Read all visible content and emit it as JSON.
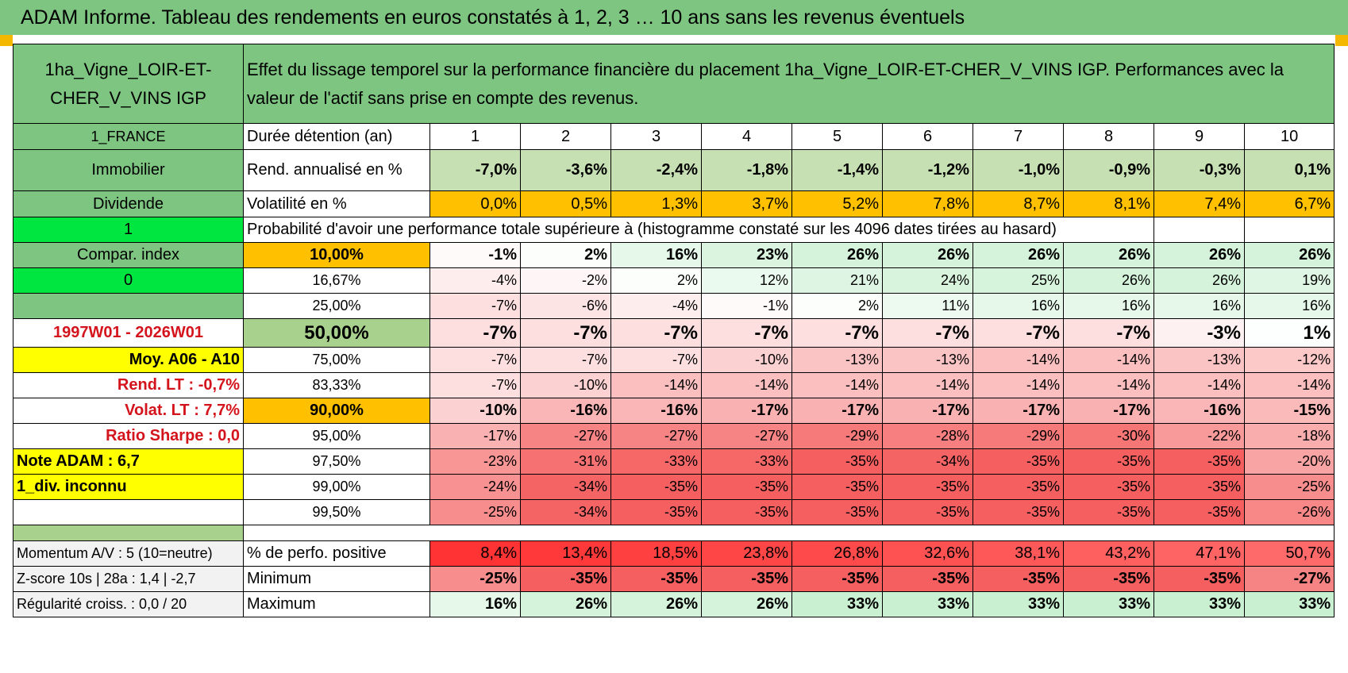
{
  "title": "ADAM Informe. Tableau des rendements en euros constatés à 1, 2, 3 … 10 ans sans les revenus éventuels",
  "header": {
    "asset_name": "1ha_Vigne_LOIR-ET-CHER_V_VINS IGP",
    "description": "Effet du lissage temporel sur la performance financière du placement 1ha_Vigne_LOIR-ET-CHER_V_VINS IGP. Performances avec la valeur de l'actif sans prise en compte des revenus."
  },
  "left_panel": {
    "country": "1_FRANCE",
    "category": "Immobilier",
    "income_type": "Dividende",
    "flag_1": "1",
    "compar_index": "Compar. index",
    "flag_0": "0",
    "empty": "",
    "period": "1997W01 - 2026W01",
    "moy": "Moy. A06 - A10",
    "rend_lt": "Rend. LT :    -0,7%",
    "volat_lt": "Volat. LT :    7,7%",
    "sharpe": "Ratio Sharpe :    0,0",
    "note": "Note ADAM : 6,7",
    "div": "1_div. inconnu"
  },
  "durations": {
    "label": "Durée détention (an)",
    "values": [
      "1",
      "2",
      "3",
      "4",
      "5",
      "6",
      "7",
      "8",
      "9",
      "10"
    ]
  },
  "rend_annualise": {
    "label": "Rend. annualisé en %",
    "values": [
      "-7,0%",
      "-3,6%",
      "-2,4%",
      "-1,8%",
      "-1,4%",
      "-1,2%",
      "-1,0%",
      "-0,9%",
      "-0,3%",
      "0,1%"
    ]
  },
  "volatilite": {
    "label": "Volatilité en %",
    "values": [
      "0,0%",
      "0,5%",
      "1,3%",
      "3,7%",
      "5,2%",
      "7,8%",
      "8,7%",
      "8,1%",
      "7,4%",
      "6,7%"
    ]
  },
  "probability_header": "Probabilité d'avoir une performance totale supérieure à (histogramme constaté sur les 4096 dates tirées au hasard)",
  "percentile_rows": [
    {
      "p": "10,00%",
      "values": [
        "-1%",
        "2%",
        "16%",
        "23%",
        "26%",
        "26%",
        "26%",
        "26%",
        "26%",
        "26%"
      ]
    },
    {
      "p": "16,67%",
      "values": [
        "-4%",
        "-2%",
        "2%",
        "12%",
        "21%",
        "24%",
        "25%",
        "26%",
        "26%",
        "19%"
      ]
    },
    {
      "p": "25,00%",
      "values": [
        "-7%",
        "-6%",
        "-4%",
        "-1%",
        "2%",
        "11%",
        "16%",
        "16%",
        "16%",
        "16%"
      ]
    },
    {
      "p": "50,00%",
      "values": [
        "-7%",
        "-7%",
        "-7%",
        "-7%",
        "-7%",
        "-7%",
        "-7%",
        "-7%",
        "-3%",
        "1%"
      ]
    },
    {
      "p": "75,00%",
      "values": [
        "-7%",
        "-7%",
        "-7%",
        "-10%",
        "-13%",
        "-13%",
        "-14%",
        "-14%",
        "-13%",
        "-12%"
      ]
    },
    {
      "p": "83,33%",
      "values": [
        "-7%",
        "-10%",
        "-14%",
        "-14%",
        "-14%",
        "-14%",
        "-14%",
        "-14%",
        "-14%",
        "-14%"
      ]
    },
    {
      "p": "90,00%",
      "values": [
        "-10%",
        "-16%",
        "-16%",
        "-17%",
        "-17%",
        "-17%",
        "-17%",
        "-17%",
        "-16%",
        "-15%"
      ]
    },
    {
      "p": "95,00%",
      "values": [
        "-17%",
        "-27%",
        "-27%",
        "-27%",
        "-29%",
        "-28%",
        "-29%",
        "-30%",
        "-22%",
        "-18%"
      ]
    },
    {
      "p": "97,50%",
      "values": [
        "-23%",
        "-31%",
        "-33%",
        "-33%",
        "-35%",
        "-34%",
        "-35%",
        "-35%",
        "-35%",
        "-20%"
      ]
    },
    {
      "p": "99,00%",
      "values": [
        "-24%",
        "-34%",
        "-35%",
        "-35%",
        "-35%",
        "-35%",
        "-35%",
        "-35%",
        "-35%",
        "-25%"
      ]
    },
    {
      "p": "99,50%",
      "values": [
        "-25%",
        "-34%",
        "-35%",
        "-35%",
        "-35%",
        "-35%",
        "-35%",
        "-35%",
        "-35%",
        "-26%"
      ]
    }
  ],
  "footer": {
    "momentum": "Momentum A/V : 5 (10=neutre)",
    "zscore": "Z-score 10s | 28a : 1,4 | -2,7",
    "regularite": "Régularité croiss. : 0,0 / 20",
    "positive_label": "% de perfo. positive",
    "positive": [
      "8,4%",
      "13,4%",
      "18,5%",
      "23,8%",
      "26,8%",
      "32,6%",
      "38,1%",
      "43,2%",
      "47,1%",
      "50,7%"
    ],
    "minimum_label": "Minimum",
    "minimum": [
      "-25%",
      "-35%",
      "-35%",
      "-35%",
      "-35%",
      "-35%",
      "-35%",
      "-35%",
      "-35%",
      "-27%"
    ],
    "maximum_label": "Maximum",
    "maximum": [
      "16%",
      "26%",
      "26%",
      "26%",
      "33%",
      "33%",
      "33%",
      "33%",
      "33%",
      "33%"
    ]
  }
}
